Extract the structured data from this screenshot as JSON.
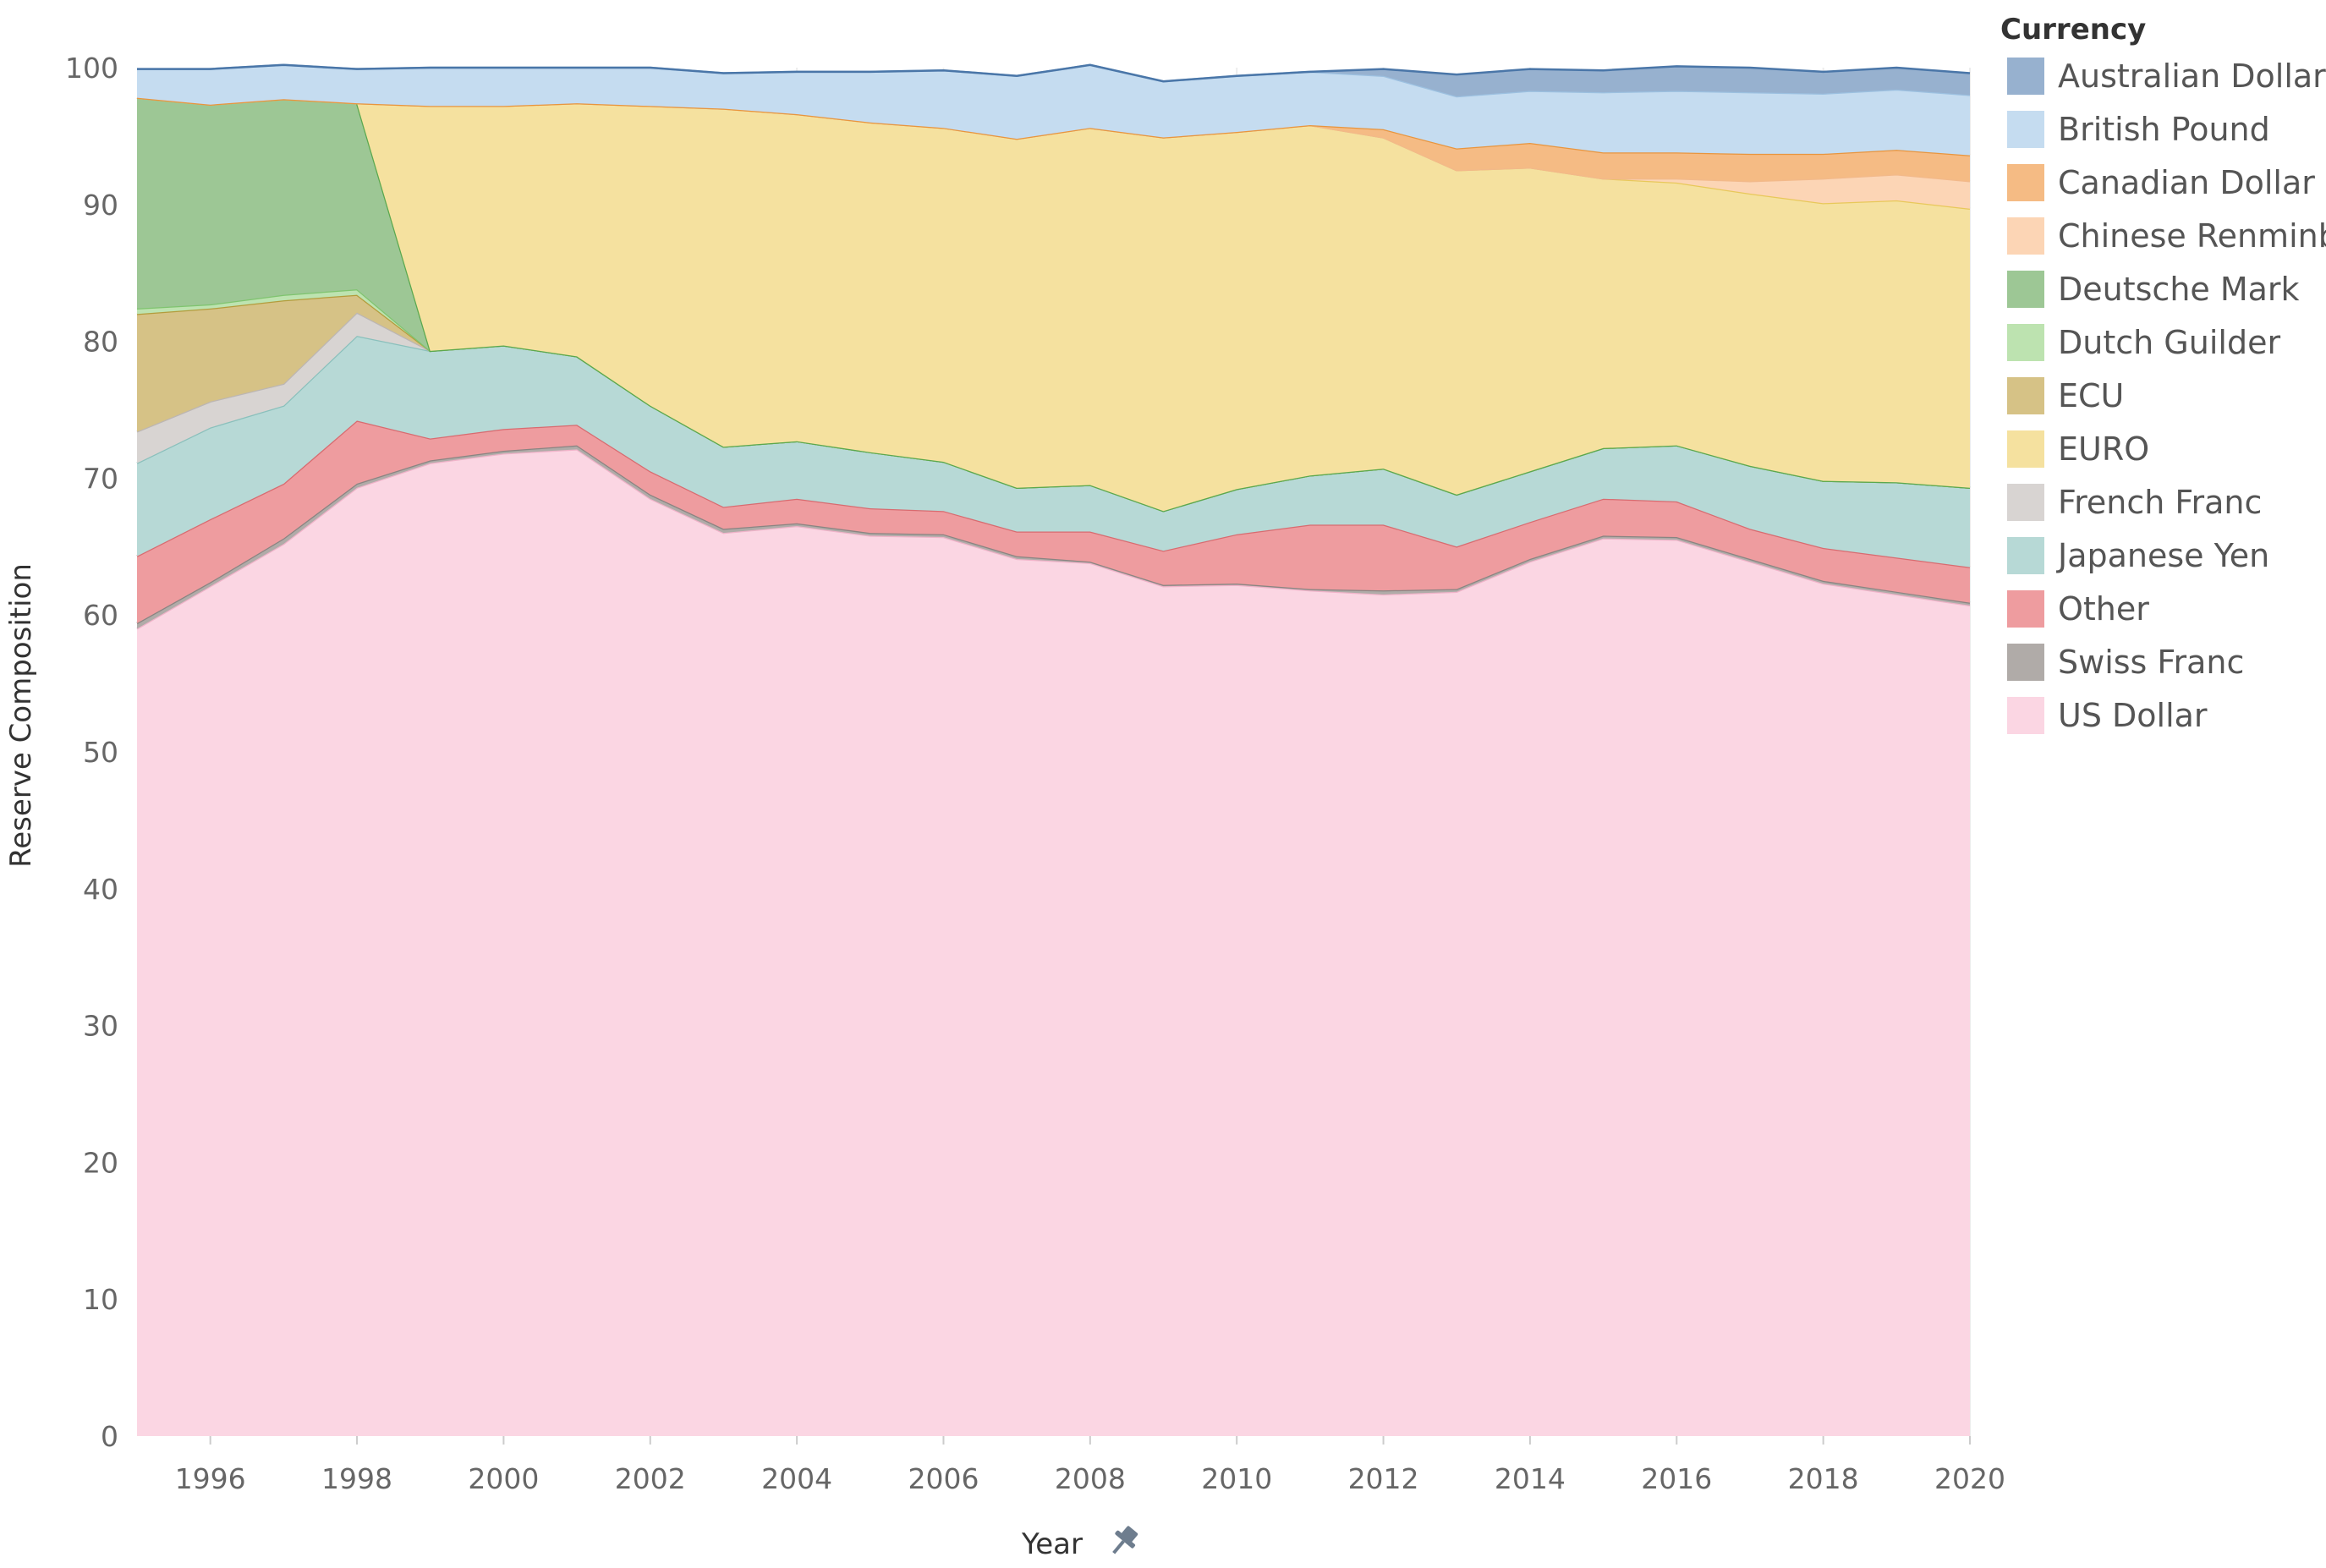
{
  "chart_data": {
    "type": "area",
    "stacked": true,
    "xlabel": "Year",
    "ylabel": "Reserve Composition",
    "x": [
      1995,
      1996,
      1997,
      1998,
      1999,
      2000,
      2001,
      2002,
      2003,
      2004,
      2005,
      2006,
      2007,
      2008,
      2009,
      2010,
      2011,
      2012,
      2013,
      2014,
      2015,
      2016,
      2017,
      2018,
      2019,
      2020
    ],
    "xlim": [
      1995,
      2020
    ],
    "xticks": [
      1996,
      1998,
      2000,
      2002,
      2004,
      2006,
      2008,
      2010,
      2012,
      2014,
      2016,
      2018,
      2020
    ],
    "ylim": [
      0,
      100
    ],
    "yticks": [
      0,
      10,
      20,
      30,
      40,
      50,
      60,
      70,
      80,
      90,
      100
    ],
    "grid": true,
    "legend": {
      "title": "Currency",
      "position": "right"
    },
    "stack_order": [
      "US Dollar",
      "Swiss Franc",
      "Other",
      "Japanese Yen",
      "French Franc",
      "ECU",
      "Dutch Guilder",
      "Deutsche Mark",
      "EURO",
      "Chinese Renminbi",
      "Canadian Dollar",
      "British Pound",
      "Australian Dollar"
    ],
    "series": [
      {
        "name": "Australian Dollar",
        "fill": "#97b1cf",
        "stroke": "#4a76a8",
        "values": [
          0,
          0,
          0,
          0,
          0,
          0,
          0,
          0,
          0,
          0,
          0,
          0,
          0,
          0,
          0,
          0,
          0,
          0.5,
          1.6,
          1.6,
          1.6,
          1.8,
          1.8,
          1.6,
          1.6,
          1.6
        ]
      },
      {
        "name": "British Pound",
        "fill": "#c5dcf0",
        "stroke": "#9cc0e0",
        "values": [
          2.1,
          2.6,
          2.5,
          2.5,
          2.8,
          2.8,
          2.6,
          2.8,
          2.6,
          3.1,
          3.7,
          4.2,
          4.6,
          4.6,
          4.1,
          4.1,
          3.9,
          3.9,
          3.8,
          3.8,
          4.4,
          4.5,
          4.5,
          4.4,
          4.4,
          4.4
        ]
      },
      {
        "name": "Canadian Dollar",
        "fill": "#f5bb84",
        "stroke": "#e8953e",
        "values": [
          0,
          0,
          0,
          0,
          0,
          0,
          0,
          0,
          0,
          0,
          0,
          0,
          0,
          0,
          0,
          0,
          0,
          0.6,
          1.6,
          1.8,
          1.9,
          1.9,
          2.0,
          1.8,
          1.8,
          1.9
        ]
      },
      {
        "name": "Chinese Renminbi",
        "fill": "#fcd5b5",
        "stroke": "#f2b98a",
        "values": [
          0,
          0,
          0,
          0,
          0,
          0,
          0,
          0,
          0,
          0,
          0,
          0,
          0,
          0,
          0,
          0,
          0,
          0,
          0,
          0,
          0,
          0.3,
          0.9,
          1.8,
          1.9,
          2.0
        ]
      },
      {
        "name": "Deutsche Mark",
        "fill": "#9dc795",
        "stroke": "#5aa84e",
        "values": [
          15.4,
          14.6,
          14.3,
          13.6,
          0,
          0,
          0,
          0,
          0,
          0,
          0,
          0,
          0,
          0,
          0,
          0,
          0,
          0,
          0,
          0,
          0,
          0,
          0,
          0,
          0,
          0
        ]
      },
      {
        "name": "Dutch Guilder",
        "fill": "#bde3b0",
        "stroke": "#7fc46f",
        "values": [
          0.4,
          0.3,
          0.4,
          0.4,
          0,
          0,
          0,
          0,
          0,
          0,
          0,
          0,
          0,
          0,
          0,
          0,
          0,
          0,
          0,
          0,
          0,
          0,
          0,
          0,
          0,
          0
        ]
      },
      {
        "name": "ECU",
        "fill": "#d6c286",
        "stroke": "#b39c3c",
        "values": [
          8.6,
          6.8,
          6.1,
          1.3,
          0,
          0,
          0,
          0,
          0,
          0,
          0,
          0,
          0,
          0,
          0,
          0,
          0,
          0,
          0,
          0,
          0,
          0,
          0,
          0,
          0,
          0
        ]
      },
      {
        "name": "EURO",
        "fill": "#f5e19f",
        "stroke": "#e8c85a",
        "values": [
          0,
          0,
          0,
          0,
          17.9,
          17.5,
          18.5,
          21.9,
          24.7,
          23.9,
          24.1,
          24.4,
          25.5,
          26.1,
          27.3,
          26.1,
          25.6,
          24.2,
          23.7,
          22.2,
          19.7,
          19.2,
          19.9,
          20.3,
          20.6,
          20.4
        ]
      },
      {
        "name": "French Franc",
        "fill": "#d8d4d2",
        "stroke": "#bcb6b3",
        "values": [
          2.3,
          1.9,
          1.6,
          1.7,
          0,
          0,
          0,
          0,
          0,
          0,
          0,
          0,
          0,
          0,
          0,
          0,
          0,
          0,
          0,
          0,
          0,
          0,
          0,
          0,
          0,
          0
        ]
      },
      {
        "name": "Japanese Yen",
        "fill": "#b7d9d6",
        "stroke": "#8ac0bc",
        "values": [
          6.8,
          6.7,
          5.7,
          6.2,
          6.4,
          6.1,
          5.0,
          4.8,
          4.4,
          4.2,
          4.1,
          3.6,
          3.2,
          3.4,
          2.9,
          3.3,
          3.6,
          4.1,
          3.8,
          3.7,
          3.7,
          4.1,
          4.6,
          4.9,
          5.5,
          5.8
        ]
      },
      {
        "name": "Other",
        "fill": "#ee9c9f",
        "stroke": "#d86b70",
        "values": [
          4.9,
          4.6,
          4.0,
          4.6,
          1.6,
          1.6,
          1.5,
          1.7,
          1.6,
          1.8,
          1.8,
          1.7,
          1.8,
          2.2,
          2.5,
          3.6,
          4.7,
          4.8,
          3.1,
          2.7,
          2.7,
          2.6,
          2.2,
          2.4,
          2.5,
          2.6
        ]
      },
      {
        "name": "Swiss Franc",
        "fill": "#b0aba8",
        "stroke": "#8a8482",
        "values": [
          0.4,
          0.3,
          0.4,
          0.3,
          0.2,
          0.2,
          0.3,
          0.3,
          0.3,
          0.2,
          0.2,
          0.2,
          0.2,
          0.1,
          0.1,
          0.1,
          0.1,
          0.3,
          0.2,
          0.2,
          0.2,
          0.2,
          0.2,
          0.2,
          0.2,
          0.2
        ]
      },
      {
        "name": "US Dollar",
        "fill": "#fbd6e3",
        "stroke": "#f0b3c9",
        "values": [
          59.0,
          62.1,
          65.2,
          69.3,
          71.1,
          71.8,
          72.1,
          68.5,
          66.0,
          66.5,
          65.8,
          65.7,
          64.1,
          63.8,
          62.1,
          62.2,
          61.8,
          61.5,
          61.7,
          63.9,
          65.6,
          65.5,
          63.9,
          62.3,
          61.5,
          60.7
        ]
      }
    ]
  }
}
